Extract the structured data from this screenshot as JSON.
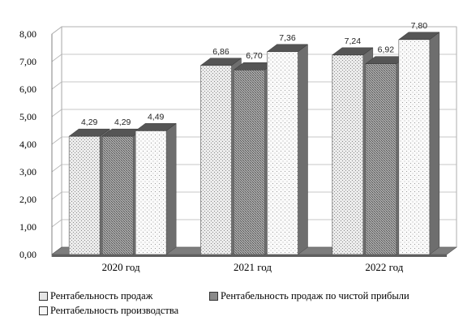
{
  "chart_data": {
    "type": "bar",
    "categories": [
      "2020 год",
      "2021 год",
      "2022 год"
    ],
    "series": [
      {
        "name": "Рентабельность продаж",
        "values": [
          4.29,
          6.86,
          7.24
        ],
        "labels": [
          "4,29",
          "6,86",
          "7,24"
        ],
        "pattern": "dots-fine",
        "color": "#e6e6e6"
      },
      {
        "name": "Рентабельность продаж по чистой прибыли",
        "values": [
          4.29,
          6.7,
          6.92
        ],
        "labels": [
          "4,29",
          "6,70",
          "6,92"
        ],
        "pattern": "cross-dark",
        "color": "#9a9a9a"
      },
      {
        "name": "Рентабельность производства",
        "values": [
          4.49,
          7.36,
          7.8
        ],
        "labels": [
          "4,49",
          "7,36",
          "7,80"
        ],
        "pattern": "dots-sparse",
        "color": "#f7f7f7"
      }
    ],
    "y_ticks": [
      "0,00",
      "1,00",
      "2,00",
      "3,00",
      "4,00",
      "5,00",
      "6,00",
      "7,00",
      "8,00"
    ],
    "ylim": [
      0,
      8
    ],
    "title": "",
    "xlabel": "",
    "ylabel": "",
    "grid": true,
    "legend_position": "bottom",
    "style": "3d-clustered-bar"
  }
}
